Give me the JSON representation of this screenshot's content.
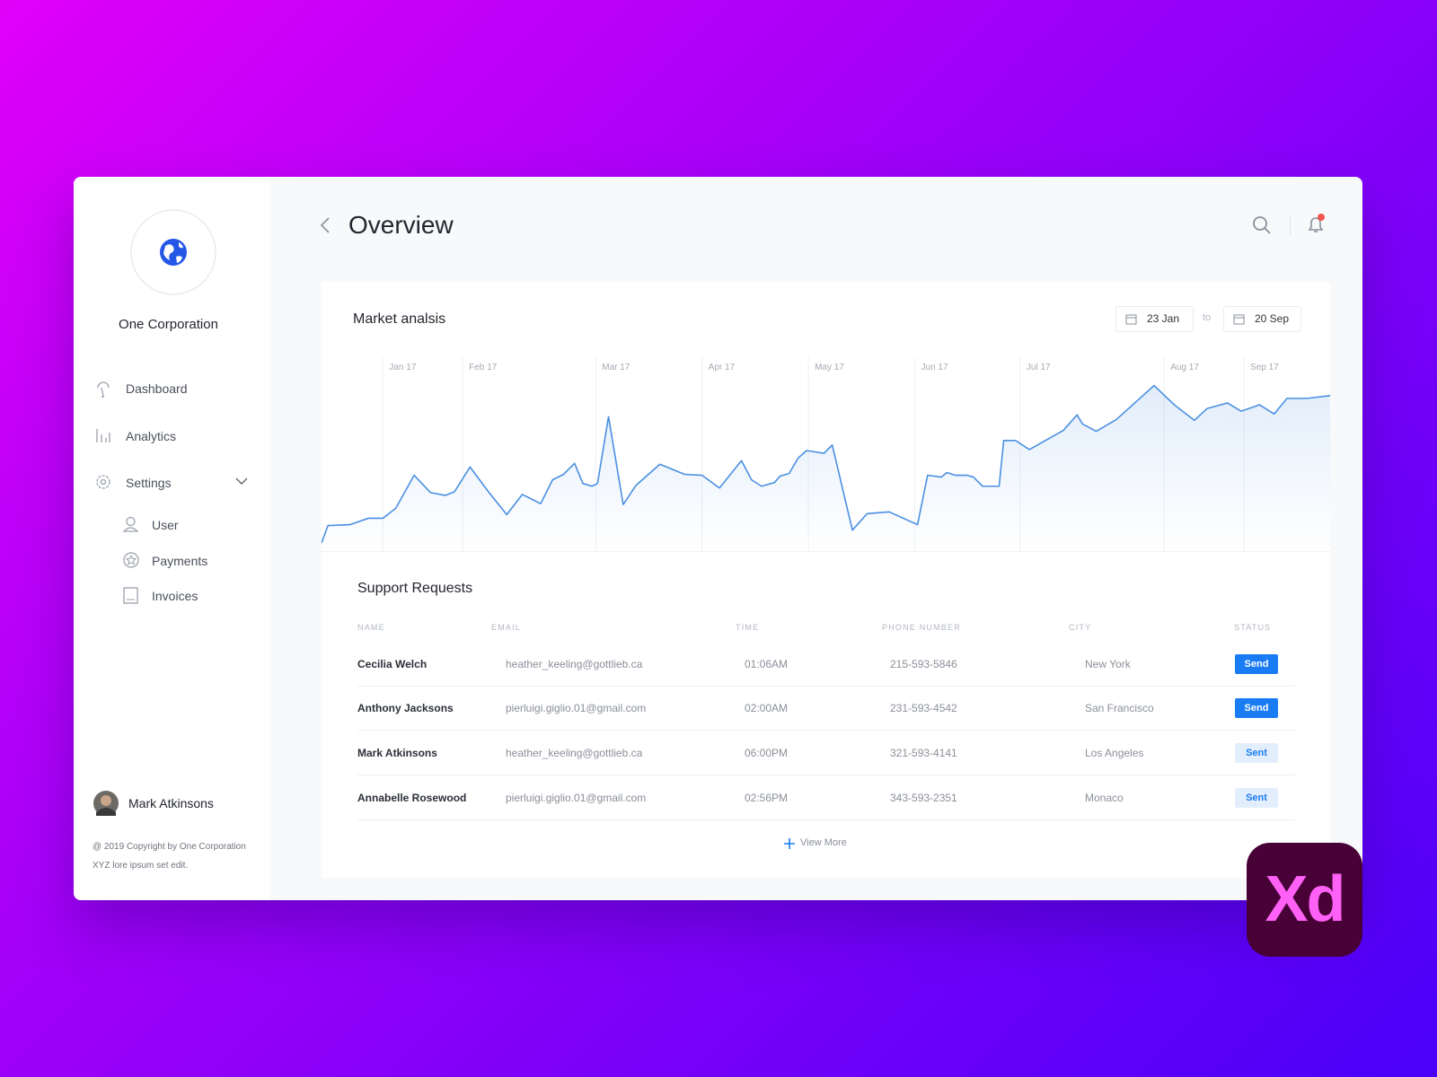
{
  "sidebar": {
    "company": "One Corporation",
    "nav": [
      "Dashboard",
      "Analytics",
      "Settings"
    ],
    "settings_sub": [
      "User",
      "Payments",
      "Invoices"
    ],
    "user": "Mark Atkinsons",
    "footer": [
      "@ 2019 Copyright by One Corporation",
      "XYZ lore ipsum set edit."
    ]
  },
  "header": {
    "title": "Overview"
  },
  "chart_data": {
    "type": "line",
    "title": "Market analsis",
    "date_from": "23 Jan",
    "date_separator": "to",
    "date_to": "20 Sep",
    "x": [
      0,
      7,
      31,
      51,
      67,
      81,
      101,
      119,
      135,
      145,
      162,
      182,
      202,
      219,
      239,
      252,
      264,
      276,
      285,
      295,
      301,
      313,
      329,
      343,
      369,
      396,
      415,
      434,
      458,
      469,
      480,
      494,
      500,
      510,
      520,
      529,
      548,
      557,
      579,
      595,
      619,
      650,
      661,
      676,
      682,
      691,
      704,
      711,
      721,
      739,
      744,
      757,
      772,
      809,
      824,
      830,
      845,
      867,
      908,
      930,
      952,
      966,
      988,
      1003,
      1023,
      1039,
      1053,
      1075,
      1100
    ],
    "series": [
      {
        "color": "#4a90e2",
        "values": [
          2,
          21,
          22,
          29,
          29,
          40,
          76,
          57,
          54,
          58,
          85,
          58,
          33,
          55,
          45,
          71,
          77,
          89,
          67,
          64,
          67,
          140,
          44,
          65,
          88,
          77,
          76,
          62,
          92,
          71,
          64,
          68,
          75,
          78,
          95,
          103,
          100,
          109,
          16,
          34,
          36,
          22,
          76,
          74,
          79,
          76,
          76,
          74,
          64,
          64,
          114,
          114,
          104,
          125,
          142,
          132,
          124,
          137,
          174,
          153,
          136,
          149,
          155,
          146,
          153,
          143,
          160,
          160,
          163
        ]
      }
    ],
    "xlim": [
      0,
      1100
    ],
    "ylim": [
      0,
      205
    ],
    "xticks": [
      {
        "value": 67,
        "label": "Jan 17"
      },
      {
        "value": 154,
        "label": "Feb 17"
      },
      {
        "value": 299,
        "label": "Mar 17"
      },
      {
        "value": 415,
        "label": "Apr 17"
      },
      {
        "value": 531,
        "label": "May 17"
      },
      {
        "value": 647,
        "label": "Jun 17"
      },
      {
        "value": 762,
        "label": "Jul 17"
      },
      {
        "value": 919,
        "label": "Aug 17"
      },
      {
        "value": 1006,
        "label": "Sep 17"
      }
    ],
    "grid": true
  },
  "table": {
    "title": "Support Requests",
    "columns": [
      "NAME",
      "EMAIL",
      "TIME",
      "PHONE NUMBER",
      "CITY",
      "STATUS"
    ],
    "rows": [
      [
        "Cecilia Welch",
        "heather_keeling@gottlieb.ca",
        "01:06AM",
        "215-593-5846",
        "New York",
        "Send"
      ],
      [
        "Anthony Jacksons",
        "pierluigi.giglio.01@gmail.com",
        "02:00AM",
        "231-593-4542",
        "San Francisco",
        "Send"
      ],
      [
        "Mark Atkinsons",
        "heather_keeling@gottlieb.ca",
        "06:00PM",
        "321-593-4141",
        "Los Angeles",
        "Sent"
      ],
      [
        "Annabelle Rosewood",
        "pierluigi.giglio.01@gmail.com",
        "02:56PM",
        "343-593-2351",
        "Monaco",
        "Sent"
      ]
    ],
    "more": "View More"
  },
  "badge": "Xd"
}
